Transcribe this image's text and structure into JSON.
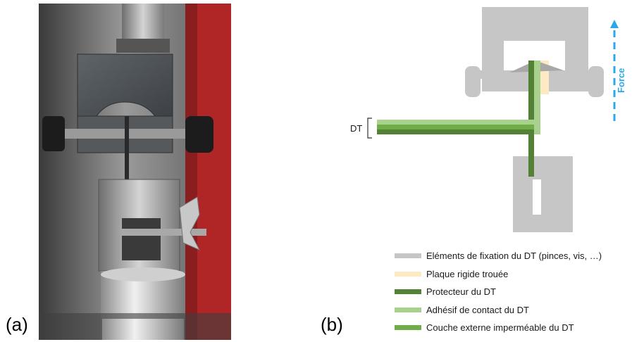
{
  "labels": {
    "a": "(a)",
    "b": "(b)"
  },
  "photo": {
    "icon": "tensile-test-clamp-photo"
  },
  "diagram": {
    "dt_label": "DT",
    "force_label": "Force",
    "colors": {
      "fixation": "#c6c6c6",
      "rigid_plate": "#fde9c4",
      "protector": "#538135",
      "adhesive": "#a9d18e",
      "outer_layer": "#70ad47",
      "force_arrow": "#2aa8e8"
    },
    "legend": [
      {
        "text": "Eléments de fixation du DT (pinces, vis, …)",
        "color": "#c6c6c6"
      },
      {
        "text": "Plaque rigide trouée",
        "color": "#fde9c4"
      },
      {
        "text": "Protecteur du DT",
        "color": "#538135"
      },
      {
        "text": "Adhésif de contact du DT",
        "color": "#a9d18e"
      },
      {
        "text": "Couche externe imperméable du DT",
        "color": "#70ad47"
      }
    ]
  }
}
